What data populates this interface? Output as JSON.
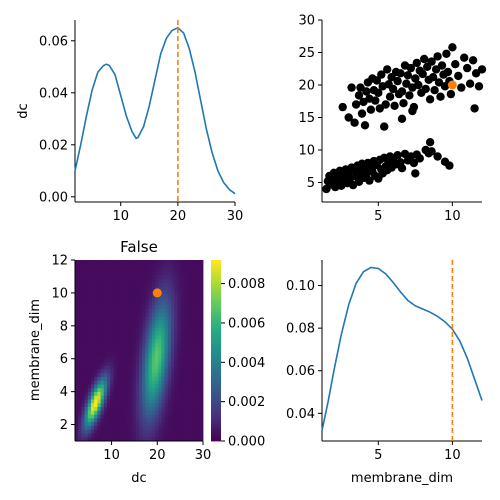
{
  "chart_data": [
    {
      "panel": "top-left",
      "type": "line",
      "title": "",
      "xlabel": "",
      "ylabel": "dc",
      "xlim": [
        2,
        30
      ],
      "ylim": [
        -0.002,
        0.068
      ],
      "xticks": [
        10,
        20,
        30
      ],
      "yticks": [
        0.0,
        0.02,
        0.04,
        0.06
      ],
      "ytick_labels": [
        "0.00",
        "0.02",
        "0.04",
        "0.06"
      ],
      "x": [
        2,
        3,
        4,
        5,
        6,
        7,
        7.5,
        8,
        9,
        10,
        11,
        12,
        12.7,
        13,
        14,
        15,
        16,
        17,
        18,
        19,
        20,
        21,
        22,
        23,
        24,
        25,
        26,
        27,
        28,
        29,
        30
      ],
      "y": [
        0.01,
        0.02,
        0.031,
        0.041,
        0.048,
        0.0505,
        0.051,
        0.0505,
        0.047,
        0.039,
        0.031,
        0.025,
        0.0225,
        0.0228,
        0.027,
        0.035,
        0.045,
        0.055,
        0.061,
        0.064,
        0.065,
        0.063,
        0.057,
        0.048,
        0.037,
        0.026,
        0.017,
        0.01,
        0.0055,
        0.0028,
        0.0012
      ],
      "line_color": "#1f77b4",
      "vline": {
        "x": 20,
        "color": "#ff7f0e",
        "style": "dashed"
      }
    },
    {
      "panel": "top-right",
      "type": "scatter",
      "title": "",
      "xlabel": "",
      "ylabel": "",
      "xlim": [
        1.2,
        12
      ],
      "ylim": [
        2,
        30
      ],
      "xticks": [
        5,
        10
      ],
      "yticks": [
        5,
        10,
        15,
        20,
        25,
        30
      ],
      "point_color": "#000000",
      "highlight": {
        "x": 10,
        "y": 20,
        "color": "#ff7f0e"
      },
      "points": [
        [
          1.5,
          4.0
        ],
        [
          1.6,
          5.2
        ],
        [
          1.7,
          6.0
        ],
        [
          1.8,
          4.7
        ],
        [
          1.9,
          5.5
        ],
        [
          2.0,
          6.5
        ],
        [
          2.1,
          4.3
        ],
        [
          2.2,
          5.8
        ],
        [
          2.3,
          5.0
        ],
        [
          2.4,
          6.8
        ],
        [
          2.5,
          4.5
        ],
        [
          2.6,
          6.1
        ],
        [
          2.7,
          5.4
        ],
        [
          2.8,
          7.0
        ],
        [
          2.9,
          4.9
        ],
        [
          3.0,
          6.4
        ],
        [
          3.1,
          5.6
        ],
        [
          3.2,
          7.3
        ],
        [
          3.3,
          4.6
        ],
        [
          3.4,
          6.9
        ],
        [
          3.5,
          5.9
        ],
        [
          3.6,
          7.6
        ],
        [
          3.7,
          5.1
        ],
        [
          3.8,
          6.6
        ],
        [
          3.9,
          7.9
        ],
        [
          4.0,
          5.7
        ],
        [
          4.1,
          7.1
        ],
        [
          4.2,
          6.2
        ],
        [
          4.3,
          8.0
        ],
        [
          4.4,
          5.3
        ],
        [
          4.5,
          7.4
        ],
        [
          4.6,
          6.7
        ],
        [
          4.7,
          8.3
        ],
        [
          4.8,
          6.0
        ],
        [
          4.9,
          7.7
        ],
        [
          5.0,
          5.6
        ],
        [
          5.1,
          8.5
        ],
        [
          5.2,
          7.0
        ],
        [
          5.3,
          6.4
        ],
        [
          5.4,
          8.8
        ],
        [
          5.5,
          7.5
        ],
        [
          5.6,
          6.9
        ],
        [
          5.7,
          8.2
        ],
        [
          5.8,
          9.0
        ],
        [
          5.9,
          7.3
        ],
        [
          6.0,
          8.6
        ],
        [
          6.2,
          7.8
        ],
        [
          6.3,
          9.2
        ],
        [
          6.5,
          8.1
        ],
        [
          6.6,
          7.2
        ],
        [
          6.8,
          9.4
        ],
        [
          7.0,
          8.4
        ],
        [
          7.2,
          9.0
        ],
        [
          7.4,
          8.0
        ],
        [
          7.5,
          6.4
        ],
        [
          7.6,
          9.3
        ],
        [
          7.8,
          8.7
        ],
        [
          8.2,
          10.0
        ],
        [
          8.4,
          9.5
        ],
        [
          8.5,
          11.2
        ],
        [
          8.6,
          9.8
        ],
        [
          9.0,
          9.0
        ],
        [
          9.5,
          8.2
        ],
        [
          9.8,
          7.6
        ],
        [
          3.0,
          15.0
        ],
        [
          3.4,
          14.2
        ],
        [
          3.5,
          17.0
        ],
        [
          3.7,
          18.4
        ],
        [
          3.8,
          19.6
        ],
        [
          4.0,
          17.4
        ],
        [
          4.1,
          13.8
        ],
        [
          4.2,
          19.0
        ],
        [
          4.3,
          20.4
        ],
        [
          4.4,
          17.9
        ],
        [
          4.5,
          16.2
        ],
        [
          4.6,
          21.0
        ],
        [
          4.7,
          19.2
        ],
        [
          4.8,
          17.6
        ],
        [
          4.9,
          20.7
        ],
        [
          5.0,
          18.8
        ],
        [
          5.1,
          16.4
        ],
        [
          5.2,
          21.6
        ],
        [
          5.3,
          19.8
        ],
        [
          5.4,
          13.6
        ],
        [
          5.5,
          17.0
        ],
        [
          5.6,
          22.4
        ],
        [
          5.7,
          20.1
        ],
        [
          5.8,
          18.2
        ],
        [
          5.9,
          21.2
        ],
        [
          6.0,
          19.4
        ],
        [
          6.1,
          16.8
        ],
        [
          6.2,
          22.0
        ],
        [
          6.3,
          20.6
        ],
        [
          6.4,
          18.6
        ],
        [
          6.5,
          21.8
        ],
        [
          6.6,
          19.0
        ],
        [
          6.7,
          17.2
        ],
        [
          6.8,
          23.0
        ],
        [
          6.9,
          20.2
        ],
        [
          7.0,
          21.5
        ],
        [
          7.1,
          18.4
        ],
        [
          7.2,
          22.6
        ],
        [
          7.3,
          19.6
        ],
        [
          7.4,
          16.6
        ],
        [
          7.5,
          21.0
        ],
        [
          7.6,
          23.4
        ],
        [
          7.7,
          20.0
        ],
        [
          7.8,
          22.2
        ],
        [
          7.9,
          18.8
        ],
        [
          8.0,
          21.7
        ],
        [
          8.1,
          24.0
        ],
        [
          8.2,
          19.4
        ],
        [
          8.3,
          22.8
        ],
        [
          8.4,
          20.8
        ],
        [
          8.5,
          17.8
        ],
        [
          8.6,
          23.6
        ],
        [
          8.7,
          21.2
        ],
        [
          8.8,
          19.2
        ],
        [
          8.9,
          22.4
        ],
        [
          9.0,
          24.4
        ],
        [
          9.1,
          20.4
        ],
        [
          9.2,
          18.2
        ],
        [
          9.3,
          23.0
        ],
        [
          9.4,
          21.6
        ],
        [
          9.5,
          19.8
        ],
        [
          9.6,
          24.8
        ],
        [
          9.7,
          22.0
        ],
        [
          9.8,
          20.6
        ],
        [
          9.9,
          18.6
        ],
        [
          10.0,
          25.8
        ],
        [
          10.2,
          23.2
        ],
        [
          10.4,
          21.4
        ],
        [
          10.6,
          19.6
        ],
        [
          10.8,
          24.2
        ],
        [
          11.0,
          22.6
        ],
        [
          11.2,
          20.2
        ],
        [
          11.4,
          23.8
        ],
        [
          11.5,
          16.4
        ],
        [
          11.6,
          21.8
        ],
        [
          11.8,
          19.8
        ],
        [
          12.0,
          22.4
        ],
        [
          3.2,
          19.6
        ],
        [
          3.9,
          15.6
        ],
        [
          2.6,
          16.6
        ],
        [
          6.6,
          14.8
        ],
        [
          7.3,
          16.0
        ]
      ]
    },
    {
      "panel": "bottom-left",
      "type": "heatmap",
      "title": "False",
      "xlabel": "dc",
      "ylabel": "membrane_dim",
      "xlim": [
        2,
        30
      ],
      "ylim": [
        1,
        12
      ],
      "xticks": [
        10,
        20,
        30
      ],
      "yticks": [
        2,
        4,
        6,
        8,
        10,
        12
      ],
      "colorbar": {
        "min": 0.0,
        "max": 0.0092,
        "ticks": [
          0.0,
          0.002,
          0.004,
          0.006,
          0.008
        ],
        "tick_labels": [
          "0.000",
          "0.002",
          "0.004",
          "0.006",
          "0.008"
        ]
      },
      "colormap": [
        "#440154",
        "#472d7b",
        "#3b528b",
        "#2c728e",
        "#21918c",
        "#28ae80",
        "#5ec962",
        "#addc30",
        "#fde725"
      ],
      "blobs": [
        {
          "cx": 6.5,
          "cy": 3.3,
          "sx": 1.6,
          "sy": 1.0,
          "rho": 0.75,
          "amp": 0.0092
        },
        {
          "cx": 19.8,
          "cy": 6.0,
          "sx": 2.1,
          "sy": 2.4,
          "rho": 0.5,
          "amp": 0.0066
        }
      ],
      "highlight": {
        "x": 20,
        "y": 10,
        "color": "#ff7f0e"
      }
    },
    {
      "panel": "bottom-right",
      "type": "line",
      "title": "",
      "xlabel": "membrane_dim",
      "ylabel": "",
      "xlim": [
        1.2,
        12
      ],
      "ylim": [
        0.027,
        0.112
      ],
      "xticks": [
        5,
        10
      ],
      "yticks": [
        0.04,
        0.06,
        0.08,
        0.1
      ],
      "ytick_labels": [
        "0.04",
        "0.06",
        "0.08",
        "0.10"
      ],
      "x": [
        1.2,
        1.6,
        2.0,
        2.5,
        3.0,
        3.5,
        4.0,
        4.5,
        5.0,
        5.5,
        6.0,
        6.5,
        7.0,
        7.5,
        8.0,
        8.5,
        9.0,
        9.5,
        10.0,
        10.5,
        11.0,
        11.5,
        12.0
      ],
      "y": [
        0.032,
        0.045,
        0.06,
        0.077,
        0.091,
        0.101,
        0.1065,
        0.1085,
        0.108,
        0.1055,
        0.1015,
        0.097,
        0.093,
        0.0905,
        0.089,
        0.0875,
        0.0855,
        0.083,
        0.0795,
        0.074,
        0.066,
        0.056,
        0.046
      ],
      "line_color": "#1f77b4",
      "vline": {
        "x": 10,
        "color": "#ff7f0e",
        "style": "dashed"
      }
    }
  ]
}
